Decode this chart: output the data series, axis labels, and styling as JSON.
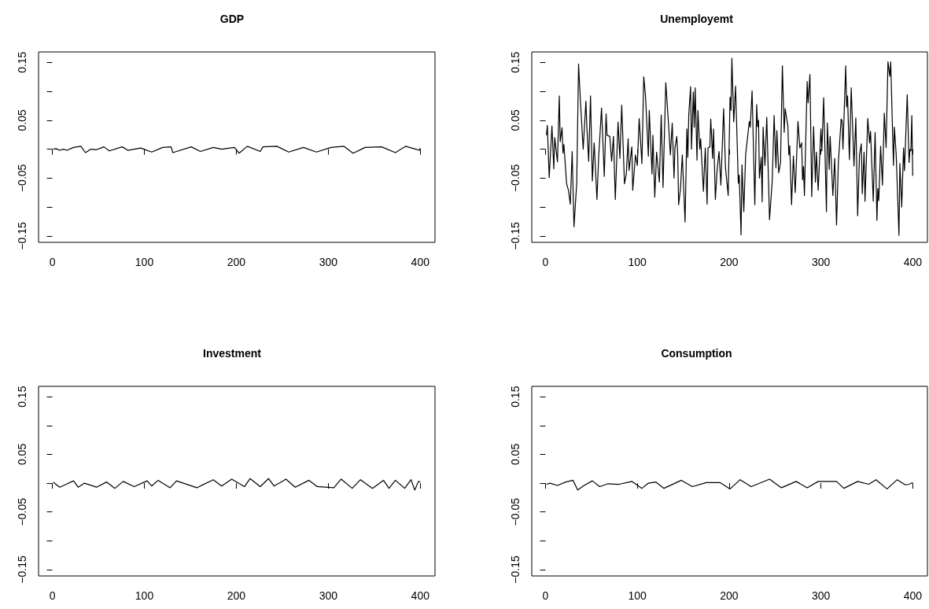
{
  "chart_data": [
    {
      "type": "line",
      "title": "GDP",
      "marker": "none",
      "xlim": [
        -15,
        416
      ],
      "xticks": [
        0,
        100,
        200,
        300,
        400
      ],
      "ylim": [
        -0.161,
        0.168
      ],
      "yticks": [
        {
          "value": -0.15,
          "label": "−0.15"
        },
        {
          "value": -0.1,
          "label": null
        },
        {
          "value": -0.05,
          "label": "−0.05"
        },
        {
          "value": 0,
          "label": null
        },
        {
          "value": 0.05,
          "label": "0.05"
        },
        {
          "value": 0.1,
          "label": null
        },
        {
          "value": 0.15,
          "label": "0.15"
        }
      ],
      "series": [
        {
          "color": "#000000",
          "x": [
            1,
            4,
            8,
            12,
            16,
            23,
            31,
            36,
            42,
            48,
            56,
            62,
            76,
            82,
            96,
            108,
            120,
            129,
            131,
            151,
            161,
            175,
            184,
            198,
            203,
            212,
            226,
            229,
            244,
            257,
            273,
            287,
            303,
            317,
            327,
            340,
            358,
            373,
            384,
            395,
            399,
            400
          ],
          "values": [
            0.0,
            0.001,
            -0.002,
            0.0,
            -0.002,
            0.003,
            0.005,
            -0.006,
            0.0,
            -0.001,
            0.004,
            -0.003,
            0.004,
            -0.002,
            0.002,
            -0.005,
            0.003,
            0.004,
            -0.006,
            0.004,
            -0.004,
            0.003,
            0.0,
            0.003,
            -0.007,
            0.005,
            -0.004,
            0.004,
            0.005,
            -0.005,
            0.003,
            -0.005,
            0.003,
            0.005,
            -0.007,
            0.003,
            0.004,
            -0.006,
            0.005,
            0.0,
            -0.002,
            0.002
          ]
        }
      ]
    },
    {
      "type": "line",
      "title": "Unemployemt",
      "marker": "none",
      "xlim": [
        -15,
        416
      ],
      "xticks": [
        0,
        100,
        200,
        300,
        400
      ],
      "ylim": [
        -0.161,
        0.168
      ],
      "yticks": [
        {
          "value": -0.15,
          "label": "−0.15"
        },
        {
          "value": -0.1,
          "label": null
        },
        {
          "value": -0.05,
          "label": "−0.05"
        },
        {
          "value": 0,
          "label": null
        },
        {
          "value": 0.05,
          "label": "0.05"
        },
        {
          "value": 0.1,
          "label": null
        },
        {
          "value": 0.15,
          "label": "0.15"
        }
      ],
      "series": [
        {
          "color": "#000000",
          "x": [
            1,
            2,
            4,
            7,
            9,
            10,
            13,
            15,
            16,
            18,
            19,
            20,
            23,
            25,
            27,
            29,
            31,
            34,
            36,
            38,
            41,
            44,
            45,
            47,
            49,
            51,
            53,
            56,
            58,
            61,
            64,
            66,
            67,
            70,
            72,
            74,
            76,
            79,
            81,
            83,
            86,
            88,
            90,
            91,
            94,
            95,
            98,
            100,
            102,
            105,
            107,
            109,
            112,
            113,
            116,
            117,
            119,
            121,
            124,
            126,
            128,
            131,
            134,
            136,
            138,
            140,
            141,
            143,
            144,
            145,
            147,
            149,
            152,
            154,
            155,
            156,
            158,
            159,
            161,
            162,
            163,
            165,
            166,
            168,
            169,
            172,
            174,
            176,
            177,
            179,
            180,
            182,
            183,
            185,
            187,
            189,
            191,
            194,
            196,
            199,
            201,
            202,
            203,
            205,
            207,
            210,
            211,
            213,
            214,
            216,
            218,
            222,
            223,
            225,
            228,
            230,
            231,
            232,
            233,
            235,
            236,
            237,
            239,
            241,
            244,
            247,
            249,
            251,
            252,
            254,
            256,
            258,
            260,
            261,
            264,
            265,
            266,
            268,
            270,
            272,
            275,
            277,
            279,
            280,
            281,
            282,
            285,
            286,
            288,
            290,
            292,
            294,
            295,
            297,
            300,
            301,
            303,
            306,
            307,
            309,
            310,
            313,
            315,
            317,
            319,
            322,
            323,
            324,
            327,
            328,
            329,
            331,
            333,
            336,
            338,
            340,
            342,
            344,
            345,
            347,
            348,
            351,
            353,
            354,
            357,
            359,
            361,
            362,
            363,
            365,
            367,
            369,
            371,
            373,
            375,
            376,
            379,
            380,
            382,
            385,
            386,
            388,
            390,
            391,
            394,
            396,
            397,
            398,
            399,
            400
          ],
          "values": [
            0.024,
            0.041,
            -0.049,
            0.04,
            -0.034,
            0.02,
            -0.022,
            0.092,
            0.013,
            0.037,
            -0.007,
            0.008,
            -0.06,
            -0.071,
            -0.095,
            -0.004,
            -0.134,
            -0.058,
            0.147,
            0.083,
            0.0,
            0.083,
            0.04,
            -0.021,
            0.092,
            -0.055,
            0.011,
            -0.087,
            -0.01,
            0.071,
            -0.047,
            0.061,
            0.024,
            0.022,
            -0.021,
            0.022,
            -0.087,
            0.047,
            -0.016,
            0.076,
            -0.06,
            -0.043,
            0.018,
            -0.037,
            0.004,
            -0.071,
            -0.01,
            -0.028,
            0.053,
            -0.025,
            0.125,
            0.09,
            -0.012,
            0.067,
            -0.043,
            0.024,
            -0.083,
            -0.005,
            -0.057,
            0.059,
            -0.066,
            0.115,
            0.043,
            -0.01,
            0.045,
            -0.05,
            0.002,
            0.022,
            -0.01,
            -0.096,
            -0.068,
            -0.01,
            -0.126,
            0.035,
            -0.014,
            0.058,
            0.108,
            0.0,
            0.099,
            0.038,
            0.106,
            -0.019,
            0.067,
            0.0,
            0.018,
            -0.073,
            0.002,
            -0.095,
            0.002,
            0.004,
            0.052,
            -0.016,
            0.035,
            -0.087,
            -0.034,
            -0.004,
            -0.062,
            0.07,
            -0.032,
            -0.08,
            0.09,
            0.067,
            0.157,
            0.047,
            0.109,
            -0.059,
            -0.045,
            -0.148,
            -0.027,
            -0.108,
            -0.009,
            0.048,
            0.038,
            0.101,
            -0.096,
            0.077,
            0.039,
            0.05,
            -0.05,
            -0.014,
            -0.091,
            0.038,
            -0.028,
            0.055,
            -0.122,
            -0.054,
            0.058,
            -0.032,
            0.032,
            -0.041,
            -0.023,
            0.144,
            0.029,
            0.07,
            0.04,
            -0.01,
            0.006,
            -0.096,
            -0.012,
            -0.075,
            0.048,
            0.002,
            0.011,
            -0.053,
            -0.03,
            -0.08,
            0.117,
            0.08,
            0.129,
            -0.082,
            0.039,
            -0.057,
            -0.005,
            -0.071,
            0.035,
            -0.003,
            0.089,
            -0.108,
            0.045,
            -0.035,
            0.022,
            -0.08,
            -0.016,
            -0.131,
            -0.023,
            0.052,
            0.049,
            0.0,
            0.144,
            0.073,
            0.092,
            -0.018,
            0.106,
            -0.029,
            0.054,
            -0.115,
            -0.01,
            0.009,
            -0.077,
            -0.005,
            -0.09,
            0.053,
            0.011,
            0.031,
            -0.09,
            0.029,
            -0.123,
            -0.068,
            -0.089,
            0.005,
            -0.062,
            0.062,
            0.003,
            0.151,
            0.126,
            0.151,
            -0.028,
            0.038,
            -0.01,
            -0.149,
            -0.025,
            -0.1,
            0.002,
            -0.037,
            0.094,
            -0.023,
            0.0,
            -0.003,
            0.058,
            -0.046
          ]
        }
      ]
    },
    {
      "type": "line",
      "title": "Investment",
      "marker": "none",
      "xlim": [
        -15,
        416
      ],
      "xticks": [
        0,
        100,
        200,
        300,
        400
      ],
      "ylim": [
        -0.161,
        0.168
      ],
      "yticks": [
        {
          "value": -0.15,
          "label": "−0.15"
        },
        {
          "value": -0.1,
          "label": null
        },
        {
          "value": -0.05,
          "label": "−0.05"
        },
        {
          "value": 0,
          "label": null
        },
        {
          "value": 0.05,
          "label": "0.05"
        },
        {
          "value": 0.1,
          "label": null
        },
        {
          "value": 0.15,
          "label": "0.15"
        }
      ],
      "series": [
        {
          "color": "#000000",
          "x": [
            1,
            3,
            8,
            15,
            23,
            28,
            35,
            48,
            59,
            68,
            77,
            89,
            103,
            108,
            115,
            128,
            135,
            157,
            175,
            184,
            195,
            209,
            215,
            226,
            235,
            241,
            254,
            264,
            279,
            288,
            306,
            314,
            326,
            335,
            348,
            360,
            366,
            373,
            383,
            390,
            394,
            398,
            400
          ],
          "values": [
            0.002,
            -0.001,
            -0.007,
            -0.002,
            0.004,
            -0.007,
            0.0,
            -0.007,
            0.002,
            -0.009,
            0.003,
            -0.006,
            0.004,
            -0.005,
            0.005,
            -0.008,
            0.004,
            -0.008,
            0.006,
            -0.005,
            0.007,
            -0.006,
            0.008,
            -0.006,
            0.008,
            -0.005,
            0.007,
            -0.007,
            0.005,
            -0.006,
            -0.008,
            0.007,
            -0.009,
            0.006,
            -0.009,
            0.005,
            -0.009,
            0.005,
            -0.009,
            0.006,
            -0.012,
            0.003,
            0.002
          ]
        }
      ]
    },
    {
      "type": "line",
      "title": "Consumption",
      "marker": "none",
      "xlim": [
        -15,
        416
      ],
      "xticks": [
        0,
        100,
        200,
        300,
        400
      ],
      "ylim": [
        -0.161,
        0.168
      ],
      "yticks": [
        {
          "value": -0.15,
          "label": "−0.15"
        },
        {
          "value": -0.1,
          "label": null
        },
        {
          "value": -0.05,
          "label": "−0.05"
        },
        {
          "value": 0,
          "label": null
        },
        {
          "value": 0.05,
          "label": "0.05"
        },
        {
          "value": 0.1,
          "label": null
        },
        {
          "value": 0.15,
          "label": "0.15"
        }
      ],
      "series": [
        {
          "color": "#000000",
          "x": [
            1,
            5,
            13,
            22,
            30,
            35,
            42,
            51,
            59,
            68,
            80,
            94,
            105,
            112,
            120,
            129,
            148,
            160,
            175,
            190,
            201,
            212,
            224,
            244,
            257,
            273,
            285,
            297,
            317,
            325,
            340,
            352,
            360,
            372,
            383,
            392,
            396,
            400
          ],
          "values": [
            -0.002,
            0.0,
            -0.004,
            0.002,
            0.005,
            -0.012,
            -0.004,
            0.004,
            -0.006,
            -0.001,
            -0.002,
            0.003,
            -0.009,
            0.0,
            0.002,
            -0.009,
            0.005,
            -0.006,
            0.001,
            0.001,
            -0.01,
            0.006,
            -0.006,
            0.007,
            -0.008,
            0.003,
            -0.008,
            0.003,
            0.003,
            -0.009,
            0.003,
            -0.002,
            0.006,
            -0.01,
            0.006,
            -0.003,
            -0.002,
            0.001
          ]
        }
      ]
    }
  ]
}
